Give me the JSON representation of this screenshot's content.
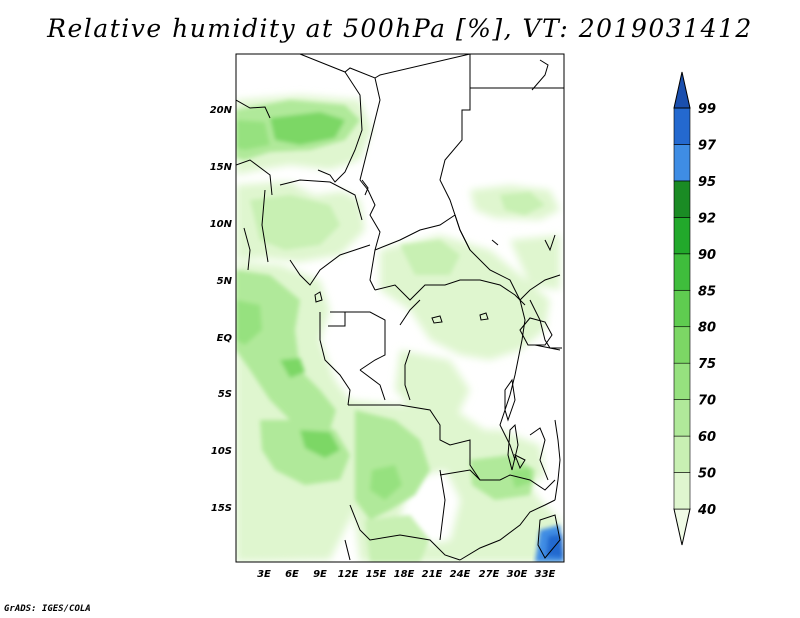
{
  "title": "Relative humidity at 500hPa [%], VT: 2019031412",
  "footer": "GrADS: IGES/COLA",
  "map": {
    "region": "Central Africa",
    "lat_labels": [
      "20N",
      "15N",
      "10N",
      "5N",
      "EQ",
      "5S",
      "10S",
      "15S"
    ],
    "lon_labels": [
      "3E",
      "6E",
      "9E",
      "12E",
      "15E",
      "18E",
      "21E",
      "24E",
      "27E",
      "30E",
      "33E"
    ]
  },
  "colorbar": {
    "levels": [
      "40",
      "50",
      "60",
      "70",
      "75",
      "80",
      "85",
      "90",
      "92",
      "95",
      "97",
      "99"
    ],
    "colors": [
      "#f0fbe6",
      "#dff6cf",
      "#c8f0b3",
      "#b0e99a",
      "#96e17f",
      "#7cd765",
      "#5fcc50",
      "#3fbd3c",
      "#22a92b",
      "#1a8b24",
      "#3f8de4",
      "#2469cf",
      "#1a4fae"
    ]
  }
}
